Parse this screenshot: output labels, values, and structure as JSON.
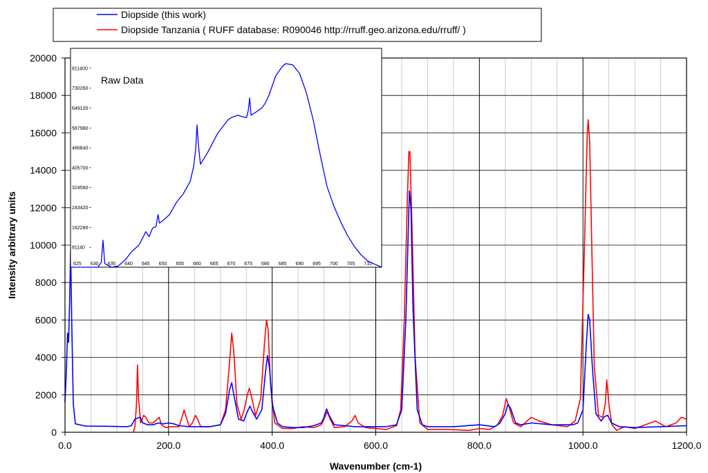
{
  "chart_data": [
    {
      "type": "line",
      "xlabel": "Wavenumber (cm-1)",
      "ylabel": "Intensity arbitrary units",
      "xlim": [
        0,
        1200
      ],
      "ylim": [
        0,
        20000
      ],
      "x_ticks": [
        "0.0",
        "200.0",
        "400.0",
        "600.0",
        "800.0",
        "1000.0",
        "1200.0"
      ],
      "y_ticks": [
        "0",
        "2000",
        "4000",
        "6000",
        "8000",
        "10000",
        "12000",
        "14000",
        "16000",
        "18000",
        "20000"
      ],
      "grid": true,
      "legend_position": "top",
      "series": [
        {
          "name": "Diopside (this work)",
          "color": "#0000ff",
          "points": [
            [
              0,
              1600
            ],
            [
              3,
              3500
            ],
            [
              5,
              5300
            ],
            [
              7,
              4800
            ],
            [
              9,
              7000
            ],
            [
              11,
              9800
            ],
            [
              13,
              6000
            ],
            [
              16,
              1500
            ],
            [
              20,
              450
            ],
            [
              40,
              330
            ],
            [
              80,
              320
            ],
            [
              120,
              300
            ],
            [
              128,
              350
            ],
            [
              135,
              700
            ],
            [
              145,
              800
            ],
            [
              150,
              500
            ],
            [
              160,
              400
            ],
            [
              170,
              400
            ],
            [
              180,
              500
            ],
            [
              190,
              450
            ],
            [
              200,
              500
            ],
            [
              210,
              450
            ],
            [
              220,
              350
            ],
            [
              240,
              300
            ],
            [
              260,
              300
            ],
            [
              280,
              300
            ],
            [
              300,
              400
            ],
            [
              310,
              1000
            ],
            [
              318,
              2300
            ],
            [
              322,
              2650
            ],
            [
              326,
              2000
            ],
            [
              335,
              700
            ],
            [
              345,
              600
            ],
            [
              352,
              1100
            ],
            [
              357,
              1400
            ],
            [
              362,
              1100
            ],
            [
              370,
              700
            ],
            [
              380,
              1200
            ],
            [
              387,
              3200
            ],
            [
              391,
              4100
            ],
            [
              395,
              3400
            ],
            [
              400,
              1500
            ],
            [
              410,
              500
            ],
            [
              420,
              300
            ],
            [
              440,
              250
            ],
            [
              460,
              250
            ],
            [
              480,
              350
            ],
            [
              495,
              500
            ],
            [
              500,
              800
            ],
            [
              505,
              1250
            ],
            [
              510,
              900
            ],
            [
              520,
              400
            ],
            [
              540,
              350
            ],
            [
              560,
              300
            ],
            [
              600,
              300
            ],
            [
              620,
              300
            ],
            [
              640,
              400
            ],
            [
              650,
              1200
            ],
            [
              658,
              6000
            ],
            [
              663,
              11000
            ],
            [
              665,
              12900
            ],
            [
              668,
              12000
            ],
            [
              672,
              6500
            ],
            [
              680,
              1200
            ],
            [
              690,
              400
            ],
            [
              700,
              300
            ],
            [
              750,
              300
            ],
            [
              800,
              400
            ],
            [
              830,
              300
            ],
            [
              840,
              500
            ],
            [
              850,
              1000
            ],
            [
              855,
              1500
            ],
            [
              860,
              1300
            ],
            [
              870,
              500
            ],
            [
              880,
              400
            ],
            [
              900,
              500
            ],
            [
              940,
              400
            ],
            [
              980,
              400
            ],
            [
              990,
              500
            ],
            [
              1000,
              1200
            ],
            [
              1006,
              4500
            ],
            [
              1010,
              6300
            ],
            [
              1013,
              6000
            ],
            [
              1018,
              3500
            ],
            [
              1025,
              1000
            ],
            [
              1035,
              600
            ],
            [
              1042,
              850
            ],
            [
              1048,
              900
            ],
            [
              1055,
              500
            ],
            [
              1070,
              300
            ],
            [
              1100,
              250
            ],
            [
              1150,
              300
            ],
            [
              1200,
              350
            ]
          ]
        },
        {
          "name": "Diopside Tanzania ( RUFF database:  R090046  http://rruff.geo.arizona.edu/rruff/ )",
          "color": "#ff0000",
          "points": [
            [
              132,
              0
            ],
            [
              135,
              300
            ],
            [
              138,
              1500
            ],
            [
              140,
              3600
            ],
            [
              142,
              1800
            ],
            [
              146,
              500
            ],
            [
              152,
              900
            ],
            [
              156,
              800
            ],
            [
              162,
              500
            ],
            [
              170,
              500
            ],
            [
              178,
              700
            ],
            [
              182,
              800
            ],
            [
              186,
              400
            ],
            [
              195,
              250
            ],
            [
              205,
              300
            ],
            [
              220,
              300
            ],
            [
              226,
              800
            ],
            [
              230,
              1200
            ],
            [
              234,
              800
            ],
            [
              240,
              300
            ],
            [
              246,
              500
            ],
            [
              252,
              900
            ],
            [
              256,
              700
            ],
            [
              262,
              300
            ],
            [
              280,
              300
            ],
            [
              300,
              400
            ],
            [
              310,
              1200
            ],
            [
              317,
              3500
            ],
            [
              322,
              5300
            ],
            [
              326,
              4300
            ],
            [
              332,
              1500
            ],
            [
              340,
              700
            ],
            [
              346,
              1200
            ],
            [
              352,
              2000
            ],
            [
              356,
              2350
            ],
            [
              360,
              1900
            ],
            [
              368,
              900
            ],
            [
              378,
              1800
            ],
            [
              385,
              4700
            ],
            [
              389,
              6000
            ],
            [
              392,
              5500
            ],
            [
              397,
              2500
            ],
            [
              405,
              500
            ],
            [
              420,
              200
            ],
            [
              440,
              200
            ],
            [
              460,
              300
            ],
            [
              480,
              250
            ],
            [
              495,
              400
            ],
            [
              500,
              700
            ],
            [
              506,
              1100
            ],
            [
              512,
              700
            ],
            [
              520,
              250
            ],
            [
              540,
              300
            ],
            [
              554,
              600
            ],
            [
              560,
              900
            ],
            [
              566,
              500
            ],
            [
              580,
              250
            ],
            [
              600,
              200
            ],
            [
              620,
              150
            ],
            [
              640,
              350
            ],
            [
              648,
              1200
            ],
            [
              655,
              6000
            ],
            [
              661,
              12500
            ],
            [
              664,
              15000
            ],
            [
              666,
              15000
            ],
            [
              670,
              11000
            ],
            [
              676,
              4000
            ],
            [
              685,
              500
            ],
            [
              700,
              150
            ],
            [
              740,
              150
            ],
            [
              780,
              100
            ],
            [
              800,
              200
            ],
            [
              820,
              150
            ],
            [
              835,
              400
            ],
            [
              845,
              900
            ],
            [
              852,
              1800
            ],
            [
              858,
              1300
            ],
            [
              866,
              500
            ],
            [
              880,
              300
            ],
            [
              900,
              800
            ],
            [
              915,
              600
            ],
            [
              940,
              400
            ],
            [
              970,
              300
            ],
            [
              985,
              600
            ],
            [
              995,
              1800
            ],
            [
              1003,
              10000
            ],
            [
              1008,
              15800
            ],
            [
              1010,
              16700
            ],
            [
              1013,
              15500
            ],
            [
              1017,
              10000
            ],
            [
              1022,
              3500
            ],
            [
              1030,
              900
            ],
            [
              1038,
              800
            ],
            [
              1043,
              1500
            ],
            [
              1046,
              2800
            ],
            [
              1050,
              1500
            ],
            [
              1056,
              400
            ],
            [
              1065,
              100
            ],
            [
              1080,
              300
            ],
            [
              1100,
              200
            ],
            [
              1120,
              400
            ],
            [
              1140,
              600
            ],
            [
              1160,
              300
            ],
            [
              1180,
              500
            ],
            [
              1190,
              800
            ],
            [
              1200,
              700
            ]
          ]
        }
      ]
    },
    {
      "type": "line",
      "inset": true,
      "title": "Raw Data",
      "xlim": [
        623,
        714
      ],
      "ylim": [
        0,
        892540
      ],
      "x_ticks": [
        "625",
        "630",
        "635",
        "640",
        "645",
        "650",
        "655",
        "660",
        "665",
        "670",
        "675",
        "680",
        "685",
        "690",
        "695",
        "700",
        "705",
        "710"
      ],
      "y_ticks": [
        "81140",
        "162280",
        "243420",
        "324560",
        "405700",
        "486840",
        "567980",
        "649120",
        "730260",
        "811400"
      ],
      "series": [
        {
          "color": "#0000ff",
          "points": [
            [
              623,
              0
            ],
            [
              631,
              0
            ],
            [
              632,
              20000
            ],
            [
              632.5,
              110000
            ],
            [
              633,
              15000
            ],
            [
              635,
              0
            ],
            [
              637,
              5000
            ],
            [
              639,
              30000
            ],
            [
              641,
              65000
            ],
            [
              643,
              90000
            ],
            [
              644.5,
              130000
            ],
            [
              645,
              145000
            ],
            [
              646,
              125000
            ],
            [
              647,
              160000
            ],
            [
              648,
              165000
            ],
            [
              648.6,
              215000
            ],
            [
              649,
              180000
            ],
            [
              650,
              190000
            ],
            [
              652,
              215000
            ],
            [
              654,
              265000
            ],
            [
              656,
              300000
            ],
            [
              658,
              350000
            ],
            [
              659,
              410000
            ],
            [
              659.6,
              480000
            ],
            [
              660,
              580000
            ],
            [
              660.4,
              500000
            ],
            [
              661,
              420000
            ],
            [
              663,
              465000
            ],
            [
              666,
              545000
            ],
            [
              669,
              600000
            ],
            [
              670,
              610000
            ],
            [
              672,
              620000
            ],
            [
              673,
              615000
            ],
            [
              674.5,
              610000
            ],
            [
              675,
              640000
            ],
            [
              675.4,
              690000
            ],
            [
              675.8,
              620000
            ],
            [
              677,
              630000
            ],
            [
              679,
              650000
            ],
            [
              680,
              670000
            ],
            [
              681,
              700000
            ],
            [
              683,
              780000
            ],
            [
              685,
              820000
            ],
            [
              686,
              830000
            ],
            [
              688,
              825000
            ],
            [
              690,
              790000
            ],
            [
              692,
              710000
            ],
            [
              694,
              600000
            ],
            [
              696,
              460000
            ],
            [
              698,
              330000
            ],
            [
              700,
              250000
            ],
            [
              702,
              185000
            ],
            [
              704,
              130000
            ],
            [
              706,
              85000
            ],
            [
              708,
              50000
            ],
            [
              710,
              25000
            ],
            [
              712,
              12000
            ],
            [
              714,
              0
            ]
          ]
        }
      ]
    }
  ]
}
